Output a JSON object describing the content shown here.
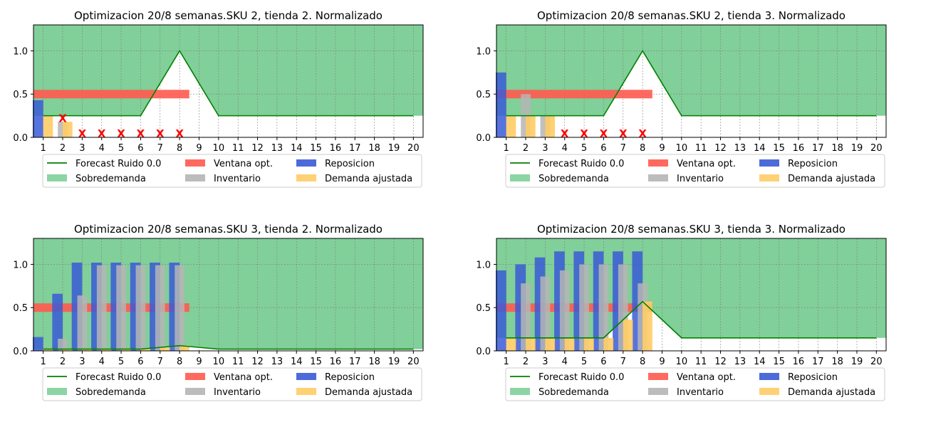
{
  "legend": {
    "forecast": "Forecast Ruido 0.0",
    "sobredemanda": "Sobredemanda",
    "ventana": "Ventana opt.",
    "inventario": "Inventario",
    "reposicion": "Reposicion",
    "demanda": "Demanda ajustada"
  },
  "colors": {
    "forecast": "#008000",
    "sobredemanda": "#81cf99",
    "ventana": "#ff5a4f",
    "inventario": "#b5b5b5",
    "reposicion": "#3a5ad6",
    "demanda": "#ffcc66",
    "stockout": "#ff0000"
  },
  "chart_data": [
    {
      "type": "bar",
      "title": "Optimizacion 20/8 semanas.SKU 2, tienda 2. Normalizado",
      "x": [
        1,
        2,
        3,
        4,
        5,
        6,
        7,
        8,
        9,
        10,
        11,
        12,
        13,
        14,
        15,
        16,
        17,
        18,
        19,
        20
      ],
      "yticks": [
        "0.0",
        "0.5",
        "1.0"
      ],
      "ylim": [
        0,
        1.3
      ],
      "xlim": [
        0.5,
        20.5
      ],
      "grid": true,
      "legend_position": "bottom",
      "forecast": [
        0.25,
        0.25,
        0.25,
        0.25,
        0.25,
        0.25,
        0.625,
        1.0,
        0.625,
        0.25,
        0.25,
        0.25,
        0.25,
        0.25,
        0.25,
        0.25,
        0.25,
        0.25,
        0.25,
        0.25
      ],
      "ventana": {
        "start": 1,
        "end": 8,
        "value": 0.5
      },
      "inventario": [
        0.0,
        0.18,
        0,
        0,
        0,
        0,
        0,
        0
      ],
      "reposicion": [
        0.43,
        0,
        0,
        0,
        0,
        0,
        0,
        0
      ],
      "demanda": [
        0.25,
        0.18,
        0,
        0,
        0,
        0,
        0,
        0
      ],
      "stockouts": [
        2,
        3,
        4,
        5,
        6,
        7,
        8
      ],
      "stockout_marker": "X"
    },
    {
      "type": "bar",
      "title": "Optimizacion 20/8 semanas.SKU 2, tienda 3. Normalizado",
      "x": [
        1,
        2,
        3,
        4,
        5,
        6,
        7,
        8,
        9,
        10,
        11,
        12,
        13,
        14,
        15,
        16,
        17,
        18,
        19,
        20
      ],
      "yticks": [
        "0.0",
        "0.5",
        "1.0"
      ],
      "ylim": [
        0,
        1.3
      ],
      "xlim": [
        0.5,
        20.5
      ],
      "grid": true,
      "legend_position": "bottom",
      "forecast": [
        0.25,
        0.25,
        0.25,
        0.25,
        0.25,
        0.25,
        0.625,
        1.0,
        0.625,
        0.25,
        0.25,
        0.25,
        0.25,
        0.25,
        0.25,
        0.25,
        0.25,
        0.25,
        0.25,
        0.25
      ],
      "ventana": {
        "start": 1,
        "end": 8,
        "value": 0.5
      },
      "inventario": [
        0.0,
        0.5,
        0.25,
        0,
        0,
        0,
        0,
        0
      ],
      "reposicion": [
        0.75,
        0,
        0,
        0,
        0,
        0,
        0,
        0
      ],
      "demanda": [
        0.25,
        0.25,
        0.25,
        0,
        0,
        0,
        0,
        0
      ],
      "stockouts": [
        4,
        5,
        6,
        7,
        8
      ],
      "stockout_marker": "X"
    },
    {
      "type": "bar",
      "title": "Optimizacion 20/8 semanas.SKU 3, tienda 2. Normalizado",
      "x": [
        1,
        2,
        3,
        4,
        5,
        6,
        7,
        8,
        9,
        10,
        11,
        12,
        13,
        14,
        15,
        16,
        17,
        18,
        19,
        20
      ],
      "yticks": [
        "0.0",
        "0.5",
        "1.0"
      ],
      "ylim": [
        0,
        1.3
      ],
      "xlim": [
        0.5,
        20.5
      ],
      "grid": true,
      "legend_position": "bottom",
      "forecast": [
        0.02,
        0.02,
        0.02,
        0.02,
        0.02,
        0.02,
        0.04,
        0.06,
        0.04,
        0.02,
        0.02,
        0.02,
        0.02,
        0.02,
        0.02,
        0.02,
        0.02,
        0.02,
        0.02,
        0.02
      ],
      "ventana": {
        "start": 1,
        "end": 8,
        "value": 0.5
      },
      "inventario": [
        0.0,
        0.14,
        0.64,
        0.99,
        0.99,
        0.99,
        0.99,
        0.99
      ],
      "reposicion": [
        0.16,
        0.66,
        1.02,
        1.02,
        1.02,
        1.02,
        1.02,
        1.02
      ],
      "demanda": [
        0.02,
        0.02,
        0.02,
        0.02,
        0.02,
        0.02,
        0.04,
        0.06
      ],
      "stockouts": [],
      "stockout_marker": "X"
    },
    {
      "type": "bar",
      "title": "Optimizacion 20/8 semanas.SKU 3, tienda 3. Normalizado",
      "x": [
        1,
        2,
        3,
        4,
        5,
        6,
        7,
        8,
        9,
        10,
        11,
        12,
        13,
        14,
        15,
        16,
        17,
        18,
        19,
        20
      ],
      "yticks": [
        "0.0",
        "0.5",
        "1.0"
      ],
      "ylim": [
        0,
        1.3
      ],
      "xlim": [
        0.5,
        20.5
      ],
      "grid": true,
      "legend_position": "bottom",
      "forecast": [
        0.15,
        0.15,
        0.15,
        0.15,
        0.15,
        0.15,
        0.36,
        0.57,
        0.36,
        0.15,
        0.15,
        0.15,
        0.15,
        0.15,
        0.15,
        0.15,
        0.15,
        0.15,
        0.15,
        0.15
      ],
      "ventana": {
        "start": 1,
        "end": 8,
        "value": 0.5
      },
      "inventario": [
        0.0,
        0.78,
        0.86,
        0.93,
        1.0,
        1.0,
        1.0,
        0.78
      ],
      "reposicion": [
        0.93,
        1.0,
        1.08,
        1.15,
        1.15,
        1.15,
        1.15,
        1.15
      ],
      "demanda": [
        0.15,
        0.15,
        0.15,
        0.15,
        0.15,
        0.15,
        0.36,
        0.57
      ],
      "stockouts": [],
      "stockout_marker": "X"
    }
  ]
}
